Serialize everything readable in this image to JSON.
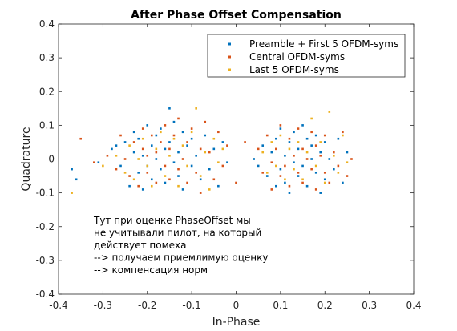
{
  "chart_data": {
    "type": "scatter",
    "title": "After Phase Offset Compensation",
    "xlabel": "In-Phase",
    "ylabel": "Quadrature",
    "xlim": [
      -0.4,
      0.4
    ],
    "ylim": [
      -0.4,
      0.4
    ],
    "xticks": [
      -0.4,
      -0.3,
      -0.2,
      -0.1,
      0,
      0.1,
      0.2,
      0.3,
      0.4
    ],
    "yticks": [
      -0.4,
      -0.3,
      -0.2,
      -0.1,
      0,
      0.1,
      0.2,
      0.3,
      0.4
    ],
    "xtick_labels": [
      "-0.4",
      "-0.3",
      "-0.2",
      "-0.1",
      "0",
      "0.1",
      "0.2",
      "0.3",
      "0.4"
    ],
    "ytick_labels": [
      "-0.4",
      "-0.3",
      "-0.2",
      "-0.1",
      "0",
      "0.1",
      "0.2",
      "0.3",
      "0.4"
    ],
    "grid": false,
    "legend_position": "top-right",
    "series": [
      {
        "name": "Preamble + First 5 OFDM-syms",
        "color": "#0072BD",
        "points": [
          [
            -0.37,
            -0.03
          ],
          [
            -0.36,
            -0.06
          ],
          [
            -0.31,
            -0.01
          ],
          [
            -0.28,
            0.03
          ],
          [
            -0.27,
            0.04
          ],
          [
            -0.26,
            -0.02
          ],
          [
            -0.25,
            0.05
          ],
          [
            -0.24,
            -0.08
          ],
          [
            -0.23,
            0.02
          ],
          [
            -0.23,
            0.08
          ],
          [
            -0.22,
            -0.04
          ],
          [
            -0.22,
            0.06
          ],
          [
            -0.21,
            0.01
          ],
          [
            -0.21,
            -0.09
          ],
          [
            -0.2,
            0.1
          ],
          [
            -0.2,
            -0.02
          ],
          [
            -0.19,
            0.04
          ],
          [
            -0.19,
            -0.06
          ],
          [
            -0.18,
            0.07
          ],
          [
            -0.18,
            0.0
          ],
          [
            -0.17,
            -0.03
          ],
          [
            -0.17,
            0.09
          ],
          [
            -0.16,
            0.03
          ],
          [
            -0.16,
            -0.07
          ],
          [
            -0.15,
            0.15
          ],
          [
            -0.15,
            0.05
          ],
          [
            -0.14,
            -0.01
          ],
          [
            -0.14,
            0.11
          ],
          [
            -0.13,
            -0.05
          ],
          [
            -0.13,
            0.02
          ],
          [
            -0.12,
            0.08
          ],
          [
            -0.12,
            -0.09
          ],
          [
            -0.11,
            0.04
          ],
          [
            -0.1,
            -0.02
          ],
          [
            -0.1,
            0.06
          ],
          [
            -0.09,
            0.01
          ],
          [
            -0.08,
            -0.06
          ],
          [
            -0.07,
            0.07
          ],
          [
            -0.06,
            -0.03
          ],
          [
            -0.05,
            0.03
          ],
          [
            -0.04,
            -0.08
          ],
          [
            -0.03,
            0.05
          ],
          [
            -0.02,
            -0.01
          ],
          [
            0.04,
            0.0
          ],
          [
            0.05,
            -0.02
          ],
          [
            0.06,
            0.04
          ],
          [
            0.07,
            -0.05
          ],
          [
            0.08,
            0.02
          ],
          [
            0.09,
            -0.08
          ],
          [
            0.09,
            0.06
          ],
          [
            0.1,
            -0.03
          ],
          [
            0.1,
            0.09
          ],
          [
            0.11,
            0.01
          ],
          [
            0.11,
            -0.07
          ],
          [
            0.12,
            0.05
          ],
          [
            0.12,
            -0.1
          ],
          [
            0.13,
            -0.01
          ],
          [
            0.13,
            0.08
          ],
          [
            0.14,
            0.03
          ],
          [
            0.14,
            -0.05
          ],
          [
            0.15,
            0.1
          ],
          [
            0.15,
            -0.02
          ],
          [
            0.16,
            0.06
          ],
          [
            0.16,
            -0.08
          ],
          [
            0.17,
            0.0
          ],
          [
            0.17,
            0.04
          ],
          [
            0.18,
            -0.04
          ],
          [
            0.18,
            0.07
          ],
          [
            0.19,
            -0.1
          ],
          [
            0.19,
            0.02
          ],
          [
            0.2,
            -0.06
          ],
          [
            0.2,
            0.05
          ],
          [
            0.21,
            0.0
          ],
          [
            0.22,
            -0.03
          ],
          [
            0.23,
            0.06
          ],
          [
            0.24,
            -0.07
          ],
          [
            0.25,
            0.02
          ]
        ]
      },
      {
        "name": "Central OFDM-syms",
        "color": "#D95319",
        "points": [
          [
            -0.35,
            0.06
          ],
          [
            -0.32,
            -0.01
          ],
          [
            -0.29,
            0.01
          ],
          [
            -0.27,
            -0.03
          ],
          [
            -0.26,
            0.07
          ],
          [
            -0.25,
            0.0
          ],
          [
            -0.24,
            -0.05
          ],
          [
            -0.23,
            0.05
          ],
          [
            -0.22,
            -0.08
          ],
          [
            -0.21,
            0.03
          ],
          [
            -0.21,
            0.09
          ],
          [
            -0.2,
            -0.04
          ],
          [
            -0.2,
            0.01
          ],
          [
            -0.19,
            0.07
          ],
          [
            -0.18,
            -0.07
          ],
          [
            -0.18,
            0.02
          ],
          [
            -0.17,
            0.05
          ],
          [
            -0.16,
            -0.02
          ],
          [
            -0.16,
            0.1
          ],
          [
            -0.15,
            -0.06
          ],
          [
            -0.15,
            0.03
          ],
          [
            -0.14,
            0.07
          ],
          [
            -0.13,
            -0.03
          ],
          [
            -0.13,
            0.12
          ],
          [
            -0.12,
            0.0
          ],
          [
            -0.11,
            -0.07
          ],
          [
            -0.11,
            0.05
          ],
          [
            -0.1,
            0.09
          ],
          [
            -0.09,
            -0.04
          ],
          [
            -0.08,
            0.03
          ],
          [
            -0.08,
            -0.1
          ],
          [
            -0.07,
            0.11
          ],
          [
            -0.06,
            0.02
          ],
          [
            -0.05,
            -0.06
          ],
          [
            -0.04,
            0.08
          ],
          [
            -0.03,
            -0.02
          ],
          [
            -0.02,
            0.04
          ],
          [
            0.0,
            -0.07
          ],
          [
            0.02,
            0.05
          ],
          [
            0.05,
            0.03
          ],
          [
            0.06,
            -0.04
          ],
          [
            0.07,
            0.07
          ],
          [
            0.08,
            -0.01
          ],
          [
            0.08,
            -0.09
          ],
          [
            0.09,
            0.03
          ],
          [
            0.1,
            -0.05
          ],
          [
            0.1,
            0.1
          ],
          [
            0.11,
            -0.02
          ],
          [
            0.12,
            0.06
          ],
          [
            0.12,
            -0.08
          ],
          [
            0.13,
            0.01
          ],
          [
            0.14,
            -0.04
          ],
          [
            0.14,
            0.09
          ],
          [
            0.15,
            0.03
          ],
          [
            0.15,
            -0.07
          ],
          [
            0.16,
            0.0
          ],
          [
            0.17,
            -0.03
          ],
          [
            0.17,
            0.08
          ],
          [
            0.18,
            0.04
          ],
          [
            0.18,
            -0.09
          ],
          [
            0.19,
            0.01
          ],
          [
            0.2,
            -0.04
          ],
          [
            0.2,
            0.07
          ],
          [
            0.21,
            -0.07
          ],
          [
            0.22,
            0.02
          ],
          [
            0.23,
            -0.02
          ],
          [
            0.24,
            0.08
          ],
          [
            0.25,
            -0.05
          ],
          [
            0.26,
            0.0
          ]
        ]
      },
      {
        "name": "Last 5 OFDM-syms",
        "color": "#EDB120",
        "points": [
          [
            -0.37,
            -0.1
          ],
          [
            -0.3,
            -0.02
          ],
          [
            -0.27,
            0.01
          ],
          [
            -0.25,
            -0.04
          ],
          [
            -0.24,
            0.04
          ],
          [
            -0.23,
            -0.06
          ],
          [
            -0.22,
            0.0
          ],
          [
            -0.21,
            0.06
          ],
          [
            -0.2,
            -0.02
          ],
          [
            -0.19,
            -0.08
          ],
          [
            -0.18,
            0.03
          ],
          [
            -0.17,
            0.08
          ],
          [
            -0.16,
            -0.05
          ],
          [
            -0.15,
            0.01
          ],
          [
            -0.14,
            0.06
          ],
          [
            -0.13,
            -0.08
          ],
          [
            -0.12,
            0.04
          ],
          [
            -0.11,
            -0.02
          ],
          [
            -0.1,
            0.08
          ],
          [
            -0.09,
            0.15
          ],
          [
            -0.08,
            -0.05
          ],
          [
            -0.07,
            0.02
          ],
          [
            -0.06,
            -0.09
          ],
          [
            -0.05,
            0.06
          ],
          [
            -0.04,
            -0.01
          ],
          [
            -0.03,
            0.03
          ],
          [
            0.06,
            0.02
          ],
          [
            0.07,
            -0.04
          ],
          [
            0.08,
            0.05
          ],
          [
            0.09,
            -0.02
          ],
          [
            0.1,
            0.07
          ],
          [
            0.11,
            -0.06
          ],
          [
            0.12,
            0.03
          ],
          [
            0.13,
            -0.03
          ],
          [
            0.14,
            0.05
          ],
          [
            0.15,
            -0.06
          ],
          [
            0.16,
            0.02
          ],
          [
            0.17,
            0.12
          ],
          [
            0.18,
            -0.02
          ],
          [
            0.19,
            0.05
          ],
          [
            0.2,
            -0.07
          ],
          [
            0.21,
            0.14
          ],
          [
            0.22,
            0.01
          ],
          [
            0.23,
            -0.04
          ],
          [
            0.24,
            0.07
          ],
          [
            0.25,
            -0.01
          ]
        ]
      }
    ]
  },
  "annotation": {
    "lines": [
      "Тут при оценке PhaseOffset мы",
      "не учитывали пилот, на который",
      "действует помеха",
      "--> получаем приемлимую оценку",
      "--> компенсация норм"
    ]
  }
}
